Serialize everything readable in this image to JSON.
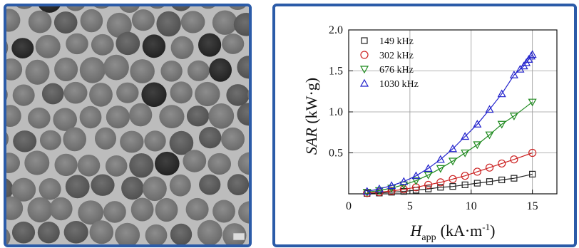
{
  "tem_image": {
    "scale_bar": "⊟"
  },
  "chart_data": {
    "type": "scatter",
    "title": "",
    "xlabel": {
      "main": "H",
      "sub": "app",
      "units": "(kA·m",
      "sup": "-1",
      "close": ")"
    },
    "ylabel": {
      "italic": "SAR",
      "units": " (kW·g)"
    },
    "xlim": [
      0,
      17
    ],
    "ylim": [
      0,
      2.0
    ],
    "xticks": [
      0,
      5,
      10,
      15
    ],
    "yticks": [
      0.5,
      1.0,
      1.5,
      2.0
    ],
    "xtick_labels": [
      "0",
      "5",
      "10",
      "15"
    ],
    "ytick_labels": [
      "0.5",
      "1.0",
      "1.5",
      "2.0"
    ],
    "grid": true,
    "legend_position": "top-left",
    "series": [
      {
        "name": "149 kHz",
        "marker": "square",
        "color": "#222222",
        "x": [
          1.5,
          2.5,
          3.5,
          4.5,
          5.5,
          6.5,
          7.5,
          8.5,
          9.5,
          10.5,
          11.5,
          12.5,
          13.5,
          15.0
        ],
        "y": [
          0.005,
          0.01,
          0.02,
          0.03,
          0.045,
          0.06,
          0.08,
          0.09,
          0.11,
          0.13,
          0.15,
          0.17,
          0.19,
          0.24
        ]
      },
      {
        "name": "302 kHz",
        "marker": "circle",
        "color": "#cc2222",
        "x": [
          1.5,
          2.5,
          3.5,
          4.5,
          5.5,
          6.5,
          7.5,
          8.5,
          9.5,
          10.5,
          11.5,
          12.5,
          13.5,
          15.0
        ],
        "y": [
          0.01,
          0.02,
          0.035,
          0.055,
          0.08,
          0.11,
          0.14,
          0.18,
          0.22,
          0.27,
          0.32,
          0.37,
          0.42,
          0.5
        ]
      },
      {
        "name": "676 kHz",
        "marker": "triangle-down",
        "color": "#1e8a1e",
        "x": [
          1.5,
          2.5,
          3.5,
          4.5,
          5.5,
          6.5,
          7.5,
          8.5,
          9.5,
          10.5,
          11.5,
          12.5,
          13.5,
          15.0
        ],
        "y": [
          0.02,
          0.04,
          0.07,
          0.11,
          0.16,
          0.23,
          0.31,
          0.4,
          0.5,
          0.6,
          0.72,
          0.85,
          0.95,
          1.12
        ]
      },
      {
        "name": "1030 kHz",
        "marker": "triangle-up",
        "color": "#2222cc",
        "x": [
          1.5,
          2.5,
          3.5,
          4.5,
          5.5,
          6.5,
          7.5,
          8.5,
          9.5,
          10.5,
          11.5,
          12.5,
          13.5,
          14.0,
          14.3,
          14.5,
          14.7,
          14.9,
          15.0
        ],
        "y": [
          0.03,
          0.06,
          0.1,
          0.15,
          0.22,
          0.31,
          0.42,
          0.55,
          0.7,
          0.85,
          1.03,
          1.22,
          1.45,
          1.52,
          1.56,
          1.6,
          1.64,
          1.68,
          1.7
        ]
      }
    ]
  }
}
